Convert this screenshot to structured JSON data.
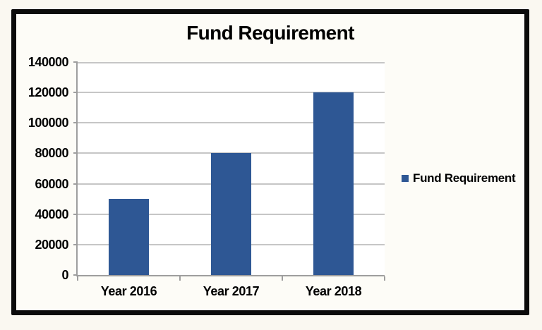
{
  "window": {
    "background_color": "#FAF8F1",
    "frame": {
      "border_color": "#0B0B0B",
      "background_color": "#FDFCF7",
      "plot_background_color": "#FFFFFF"
    }
  },
  "chart_data": {
    "type": "bar",
    "title": "Fund Requirement",
    "categories": [
      "Year 2016",
      "Year 2017",
      "Year 2018"
    ],
    "series": [
      {
        "name": "Fund Requirement",
        "values": [
          50000,
          80000,
          120000
        ]
      }
    ],
    "xlabel": "",
    "ylabel": "",
    "ylim": [
      0,
      140000
    ],
    "yticks": [
      0,
      20000,
      40000,
      60000,
      80000,
      100000,
      120000,
      140000
    ],
    "ytick_labels": [
      "0",
      "20000",
      "40000",
      "60000",
      "80000",
      "100000",
      "120000",
      "140000"
    ],
    "grid": true,
    "legend": {
      "position": "right",
      "entries": [
        {
          "label": "Fund Requirement",
          "marker_color": "#2E5794"
        }
      ]
    },
    "colors": {
      "bar": "#2E5794",
      "gridline": "#C6C6C6",
      "axis": "#9E9E9E",
      "text": "#000000"
    }
  }
}
